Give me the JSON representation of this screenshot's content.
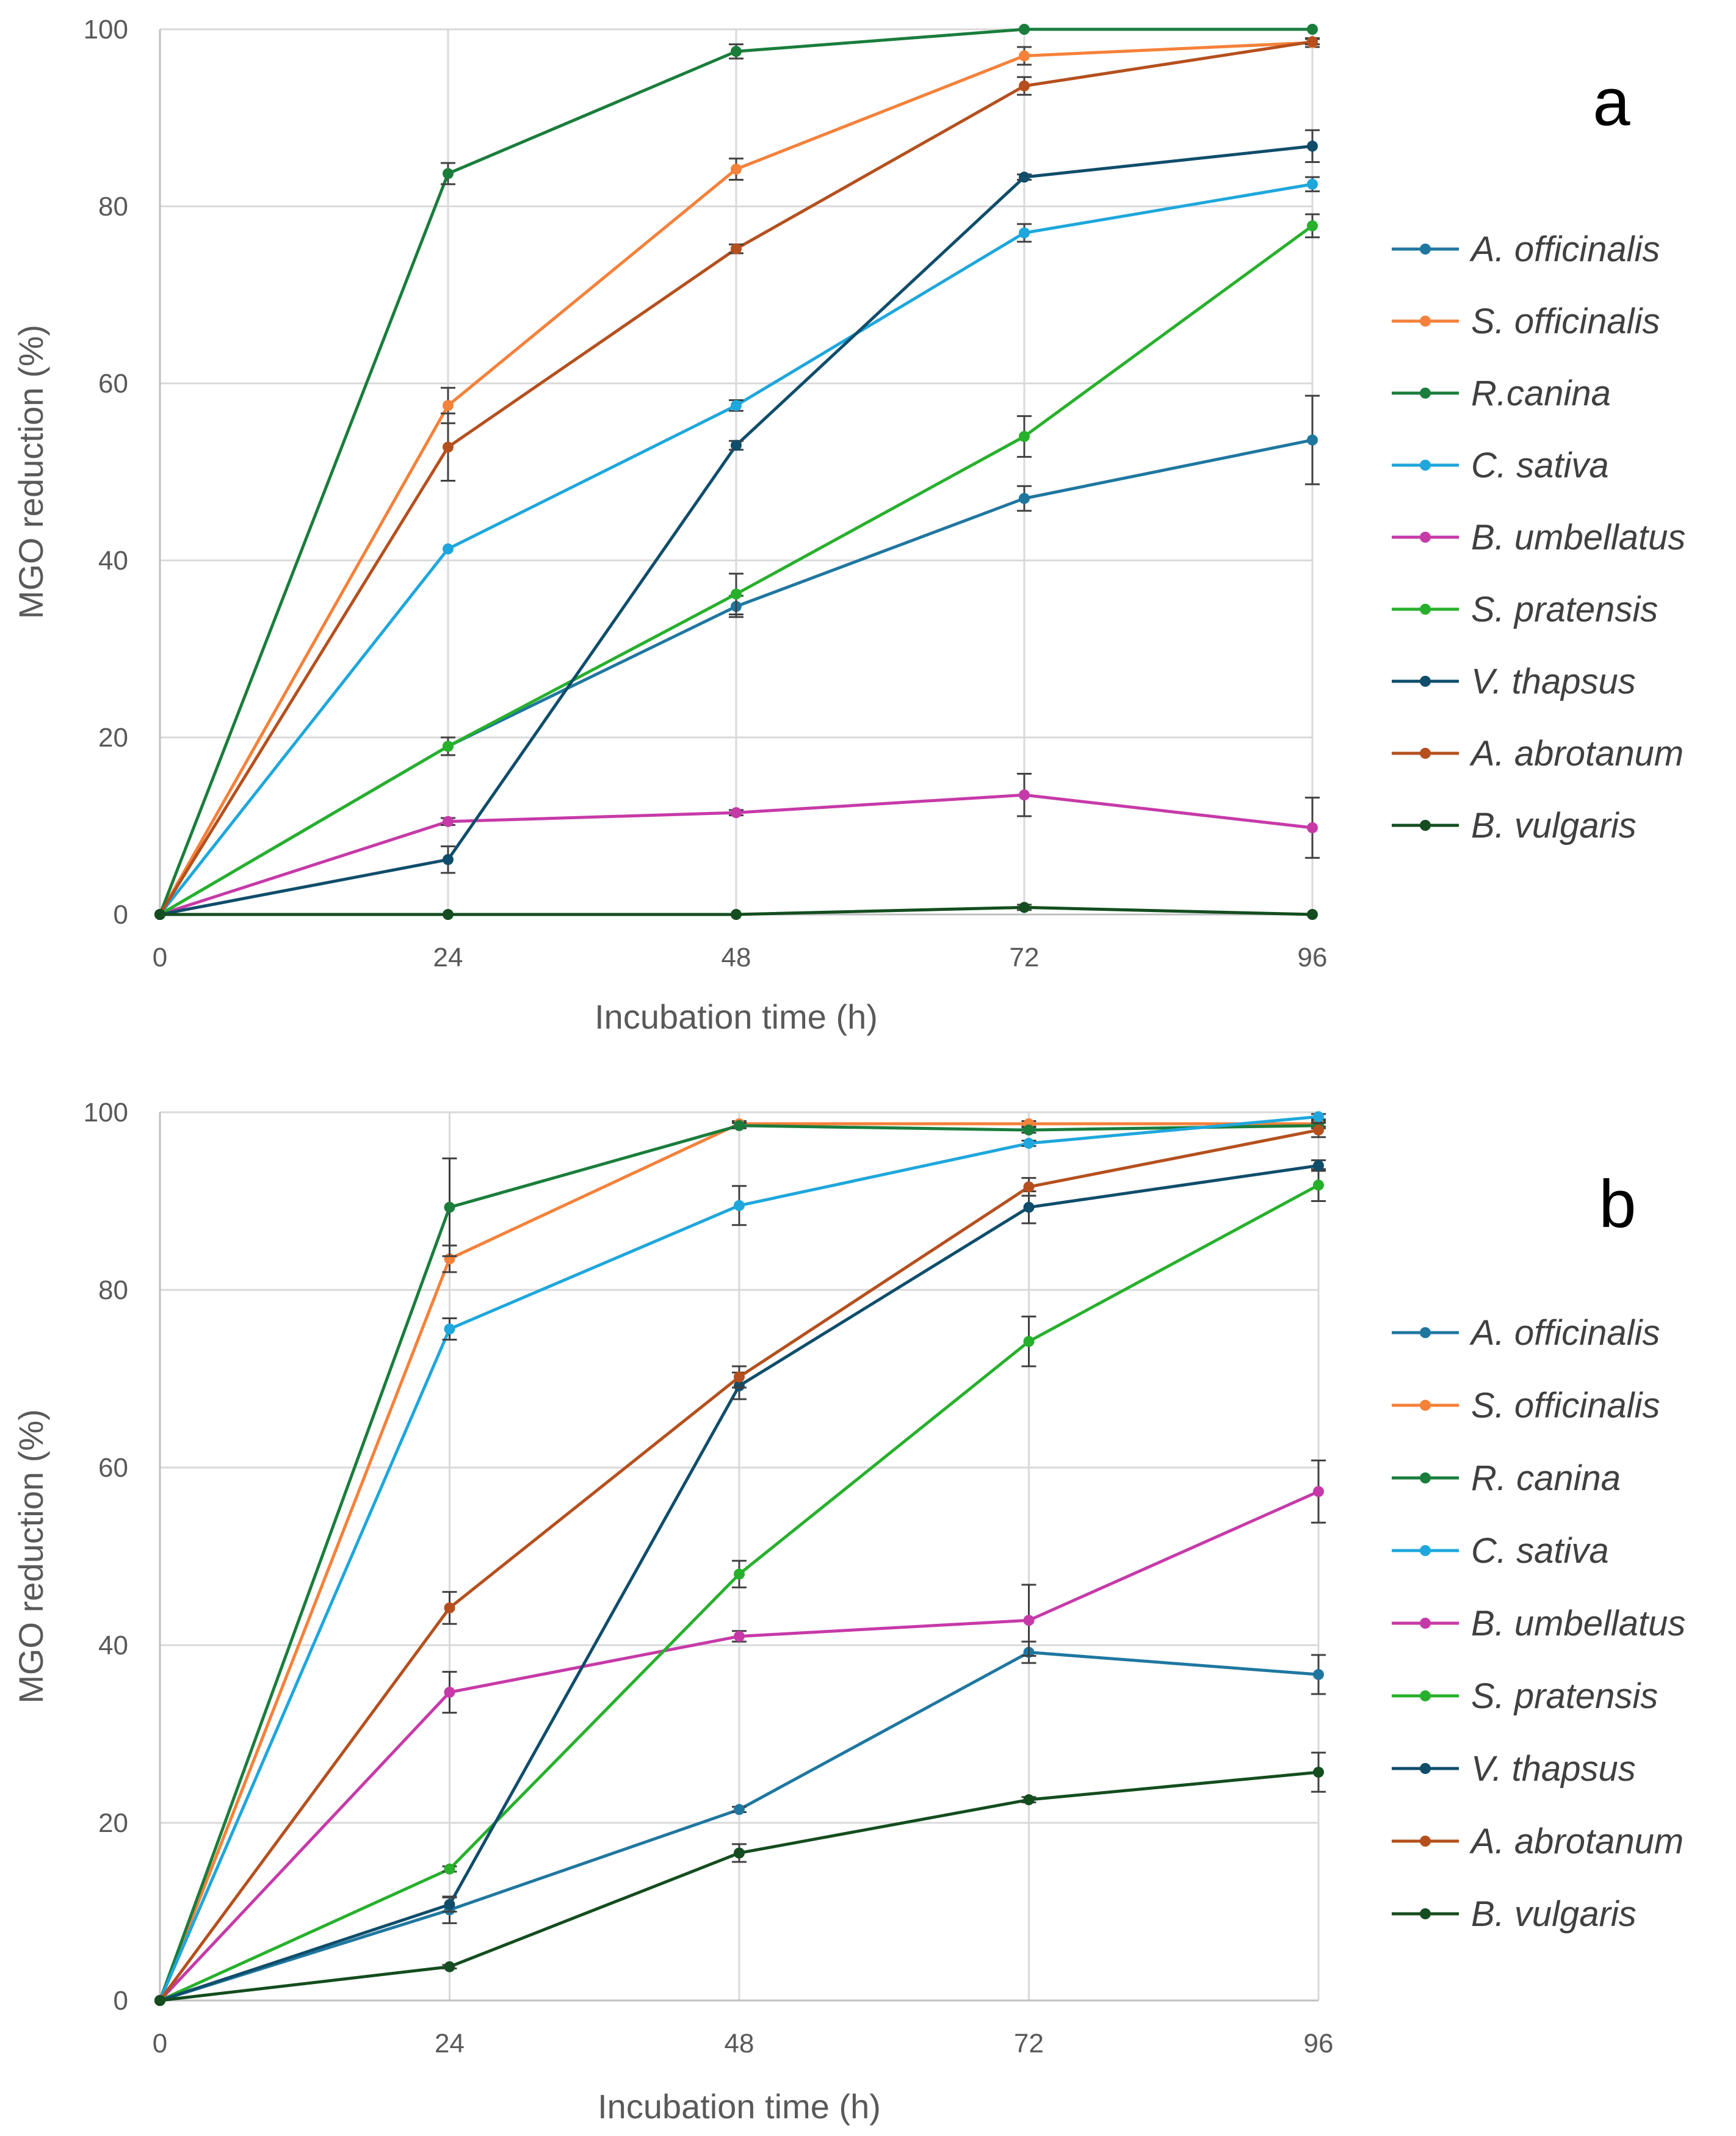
{
  "chart_data": [
    {
      "panel_label": "a",
      "type": "line",
      "xlabel": "Incubation time (h)",
      "ylabel": "MGO reduction (%)",
      "x": [
        0,
        24,
        48,
        72,
        96
      ],
      "xticks": [
        "0",
        "24",
        "48",
        "72",
        "96"
      ],
      "yticks": [
        "0",
        "20",
        "40",
        "60",
        "80",
        "100"
      ],
      "xlim": [
        0,
        96
      ],
      "ylim": [
        0,
        100
      ],
      "grid": true,
      "legend_position": "right",
      "series": [
        {
          "name": "A. officinalis",
          "color": "#1f77a0",
          "values": [
            0,
            19,
            34.8,
            47,
            53.6
          ],
          "errors": [
            0,
            1,
            1.2,
            1.4,
            5
          ]
        },
        {
          "name": "S. officinalis",
          "color": "#f5813a",
          "values": [
            0,
            57.5,
            84.2,
            97,
            98.5
          ],
          "errors": [
            0,
            2,
            1.2,
            1,
            0.5
          ]
        },
        {
          "name": "R.canina",
          "color": "#1a7d3c",
          "values": [
            0,
            83.7,
            97.5,
            100,
            100
          ],
          "errors": [
            0,
            1.2,
            0.8,
            0,
            0
          ]
        },
        {
          "name": "C. sativa",
          "color": "#1ea7dc",
          "values": [
            0,
            41.3,
            57.5,
            77,
            82.5
          ],
          "errors": [
            0,
            0,
            0.6,
            1,
            0.8
          ]
        },
        {
          "name": "B. umbellatus",
          "color": "#c63aa8",
          "values": [
            0,
            10.5,
            11.5,
            13.5,
            9.8
          ],
          "errors": [
            0,
            0.4,
            0.3,
            2.4,
            3.4
          ]
        },
        {
          "name": "S. pratensis",
          "color": "#27b02c",
          "values": [
            0,
            19,
            36.2,
            54,
            77.8
          ],
          "errors": [
            0,
            1,
            2.3,
            2.3,
            1.3
          ]
        },
        {
          "name": "V. thapsus",
          "color": "#0f4d6b",
          "values": [
            0,
            6.2,
            53,
            83.3,
            86.8
          ],
          "errors": [
            0,
            1.5,
            0.5,
            0.3,
            1.8
          ]
        },
        {
          "name": "A. abrotanum",
          "color": "#b5501e",
          "values": [
            0,
            52.8,
            75.2,
            93.6,
            98.6
          ],
          "errors": [
            0,
            3.8,
            0.5,
            1,
            0.3
          ]
        },
        {
          "name": "B. vulgaris",
          "color": "#144d1f",
          "values": [
            0,
            0,
            0,
            0.8,
            0
          ],
          "errors": [
            0,
            0,
            0,
            0.3,
            0
          ]
        }
      ]
    },
    {
      "panel_label": "b",
      "type": "line",
      "xlabel": "Incubation time (h)",
      "ylabel": "MGO reduction (%)",
      "x": [
        0,
        24,
        48,
        72,
        96
      ],
      "xticks": [
        "0",
        "24",
        "48",
        "72",
        "96"
      ],
      "yticks": [
        "0",
        "20",
        "40",
        "60",
        "80",
        "100"
      ],
      "xlim": [
        0,
        96
      ],
      "ylim": [
        0,
        100
      ],
      "grid": true,
      "legend_position": "right",
      "series": [
        {
          "name": "A.  officinalis",
          "color": "#1f77a0",
          "values": [
            0,
            10.2,
            21.5,
            39.2,
            36.7
          ],
          "errors": [
            0,
            1.5,
            0.3,
            1.2,
            2.2
          ]
        },
        {
          "name": "S. officinalis",
          "color": "#f5813a",
          "values": [
            0,
            83.5,
            98.7,
            98.7,
            98.7
          ],
          "errors": [
            0,
            1.5,
            0.3,
            0.3,
            0.3
          ]
        },
        {
          "name": "R. canina",
          "color": "#1a7d3c",
          "values": [
            0,
            89.3,
            98.5,
            98,
            98.5
          ],
          "errors": [
            0,
            5.5,
            0.3,
            0.3,
            0.3
          ]
        },
        {
          "name": "C. sativa",
          "color": "#1ea7dc",
          "values": [
            0,
            75.6,
            89.5,
            96.5,
            99.5
          ],
          "errors": [
            0,
            1.2,
            2.2,
            0.3,
            0.3
          ]
        },
        {
          "name": "B. umbellatus",
          "color": "#c63aa8",
          "values": [
            0,
            34.7,
            41,
            42.8,
            57.3
          ],
          "errors": [
            0,
            2.3,
            0.6,
            4,
            3.5
          ]
        },
        {
          "name": "S. pratensis",
          "color": "#27b02c",
          "values": [
            0,
            14.8,
            48,
            74.2,
            91.8
          ],
          "errors": [
            0,
            0.3,
            1.5,
            2.8,
            1.8
          ]
        },
        {
          "name": "V. thapsus",
          "color": "#0f4d6b",
          "values": [
            0,
            10.8,
            69.2,
            89.3,
            94
          ],
          "errors": [
            0,
            0.8,
            1.5,
            1.8,
            0.6
          ]
        },
        {
          "name": "A. abrotanum",
          "color": "#b5501e",
          "values": [
            0,
            44.2,
            70.2,
            91.6,
            98
          ],
          "errors": [
            0,
            1.8,
            1.2,
            1,
            0.8
          ]
        },
        {
          "name": "B. vulgaris",
          "color": "#144d1f",
          "values": [
            0,
            3.8,
            16.6,
            22.6,
            25.7
          ],
          "errors": [
            0,
            0.2,
            1,
            0.3,
            2.2
          ]
        }
      ]
    }
  ]
}
